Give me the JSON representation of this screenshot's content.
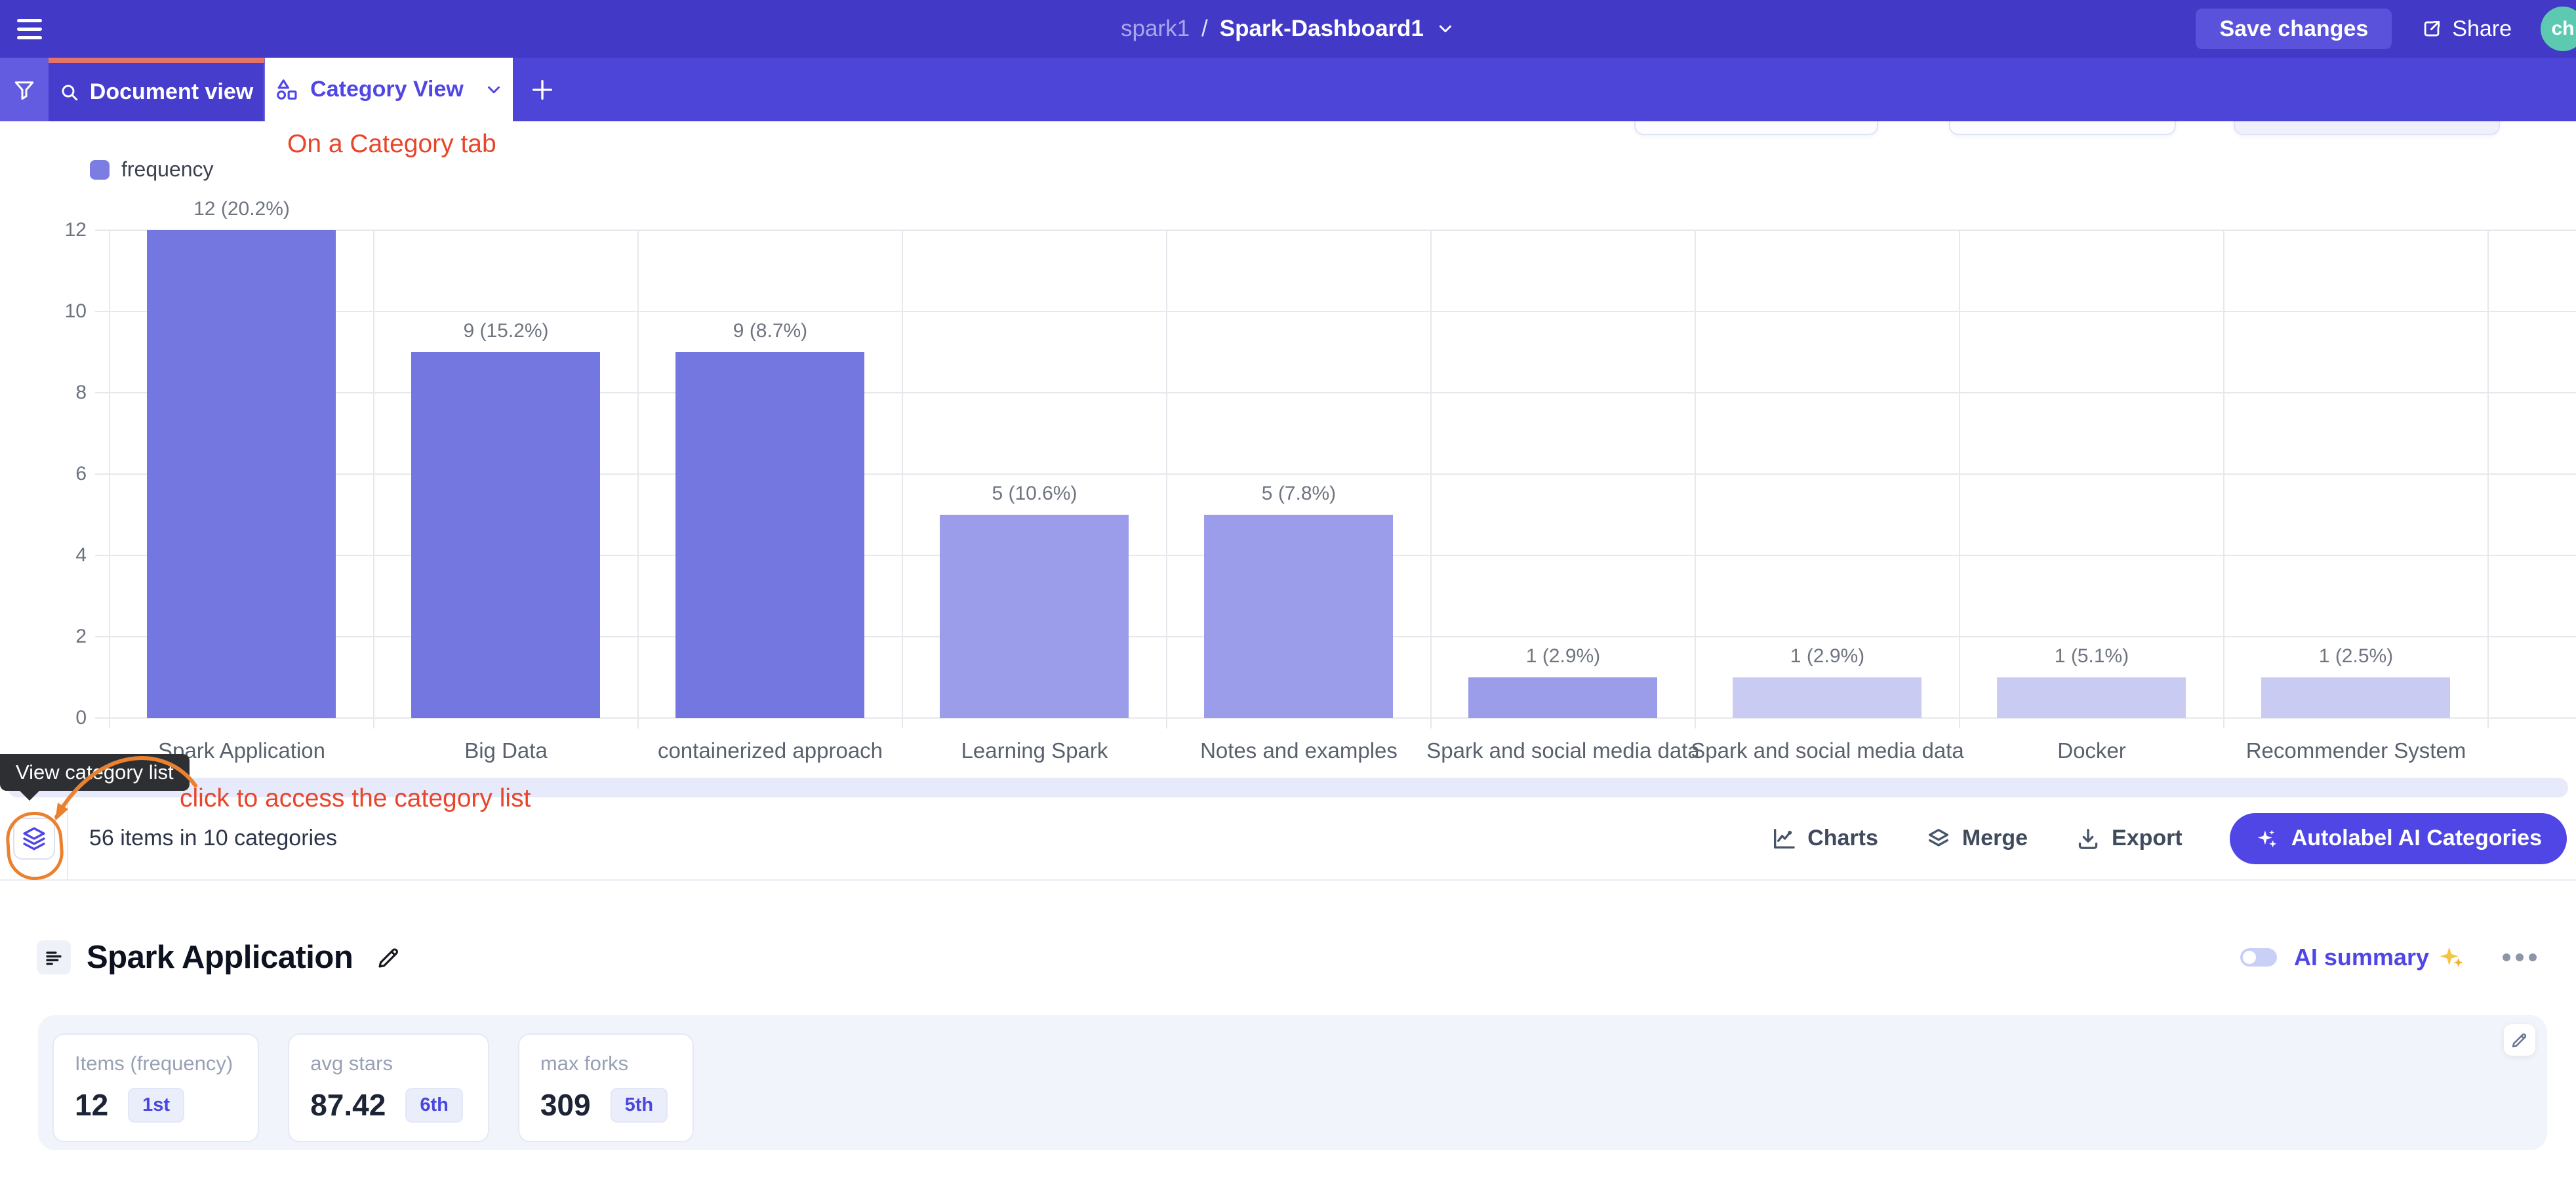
{
  "topbar": {
    "project": "spark1",
    "separator": "/",
    "document": "Spark-Dashboard1",
    "save_label": "Save changes",
    "share_label": "Share",
    "avatar_initials": "ch"
  },
  "tabs": {
    "document_label": "Document view",
    "category_label": "Category View",
    "add_label": "+"
  },
  "annotations": {
    "tab_note": "On a Category tab",
    "list_note": "click to access the category list",
    "tooltip_label": "View category list"
  },
  "chart_data": {
    "type": "bar",
    "legend": [
      "frequency"
    ],
    "legend_position": "top-left",
    "categories": [
      "Spark Application",
      "Big Data",
      "containerized approach",
      "Learning Spark",
      "Notes and examples",
      "Spark and social media data",
      "Spark and social media data",
      "Docker",
      "Recommender System"
    ],
    "values": [
      12,
      9,
      9,
      5,
      5,
      1,
      1,
      1,
      1
    ],
    "percent_labels": [
      "12 (20.2%)",
      "9 (15.2%)",
      "9 (8.7%)",
      "5 (10.6%)",
      "5 (7.8%)",
      "1 (2.9%)",
      "1 (2.9%)",
      "1 (5.1%)",
      "1 (2.5%)"
    ],
    "bar_colors": [
      "#7577e1",
      "#7577e1",
      "#7577e1",
      "#9b9dea",
      "#9b9dea",
      "#9b9dea",
      "#c9cbf3",
      "#c9cbf3",
      "#c9cbf3"
    ],
    "ylim": [
      0,
      12
    ],
    "yticks": [
      0,
      2,
      4,
      6,
      8,
      10,
      12
    ],
    "grid": true,
    "xlabel": "",
    "ylabel": ""
  },
  "toolbar": {
    "summary": "56 items in 10 categories",
    "charts_label": "Charts",
    "merge_label": "Merge",
    "export_label": "Export",
    "autolabel_label": "Autolabel AI Categories"
  },
  "section": {
    "title": "Spark Application",
    "ai_summary_label": "AI summary",
    "cards": [
      {
        "label": "Items (frequency)",
        "value": "12",
        "badge": "1st"
      },
      {
        "label": "avg stars",
        "value": "87.42",
        "badge": "6th"
      },
      {
        "label": "max forks",
        "value": "309",
        "badge": "5th"
      }
    ]
  },
  "colors": {
    "topbar_bg": "#4239c7",
    "tabbar_bg": "#4d45d8",
    "filter_btn_bg": "#635ce0",
    "doc_tab_bg": "#463dcd",
    "doc_tab_accent": "#e57368",
    "save_btn_bg": "#5a52da",
    "avatar_bg": "#5ec9b1",
    "accent_indigo": "#4f46e5",
    "annotation_red": "#e8452b",
    "annotation_orange": "#ea812f",
    "strip_lavender": "#e7eafb",
    "panel_bg": "#f2f4fb",
    "badge_bg": "#eaeefb",
    "tooltip_bg": "#2d2f33",
    "grid_line": "#e6e8ed"
  }
}
